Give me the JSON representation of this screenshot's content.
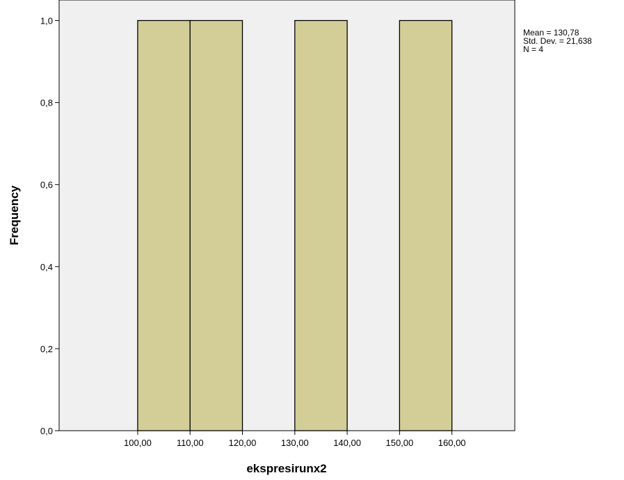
{
  "chart_data": {
    "type": "bar",
    "title": "",
    "xlabel": "ekspresirunx2",
    "ylabel": "Frequency",
    "bins": [
      {
        "start": 100,
        "end": 110,
        "value": 1.0
      },
      {
        "start": 110,
        "end": 120,
        "value": 1.0
      },
      {
        "start": 130,
        "end": 140,
        "value": 1.0
      },
      {
        "start": 150,
        "end": 160,
        "value": 1.0
      }
    ],
    "xlim": [
      85,
      172
    ],
    "ylim": [
      0,
      1.05
    ],
    "x_ticks": [
      "100,00",
      "110,00",
      "120,00",
      "130,00",
      "140,00",
      "150,00",
      "160,00"
    ],
    "x_tick_values": [
      100,
      110,
      120,
      130,
      140,
      150,
      160
    ],
    "y_ticks": [
      "0,0",
      "0,2",
      "0,4",
      "0,6",
      "0,8",
      "1,0"
    ],
    "y_tick_values": [
      0,
      0.2,
      0.4,
      0.6,
      0.8,
      1.0
    ],
    "stats": {
      "mean": "Mean = 130,78",
      "std_dev": "Std. Dev. = 21,638",
      "n": "N = 4"
    },
    "grid": false,
    "legend_placement": "right",
    "colors": {
      "bar_fill": "#d3ce97",
      "bar_stroke": "#000000",
      "plot_background": "#f0f0f0"
    }
  }
}
